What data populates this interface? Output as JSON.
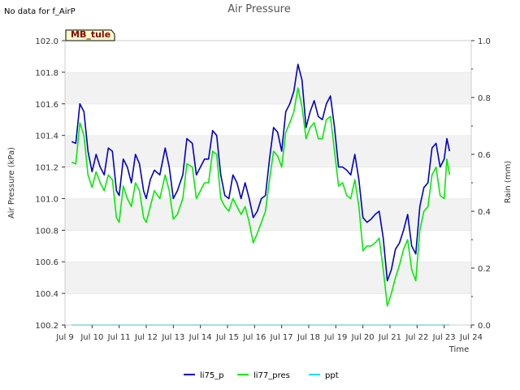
{
  "header": {
    "no_data_note": "No data for f_AirP",
    "site_label": "MB_tule"
  },
  "chart_data": {
    "type": "line",
    "title": "Air Pressure",
    "xlabel": "Time",
    "ylabel": "Air Pressure (kPa)",
    "y2label": "Rain (mm)",
    "xlim": [
      9.0,
      24.0
    ],
    "ylim": [
      100.2,
      102.0
    ],
    "y2lim": [
      0.0,
      1.0
    ],
    "x_ticks": [
      9,
      10,
      11,
      12,
      13,
      14,
      15,
      16,
      17,
      18,
      19,
      20,
      21,
      22,
      23,
      24
    ],
    "x_tick_labels": [
      "Jul 9",
      "Jul 10",
      "Jul 11",
      "Jul 12",
      "Jul 13",
      "Jul 14",
      "Jul 15",
      "Jul 16",
      "Jul 17",
      "Jul 18",
      "Jul 19",
      "Jul 20",
      "Jul 21",
      "Jul 22",
      "Jul 23",
      "Jul 24"
    ],
    "y_ticks": [
      100.2,
      100.4,
      100.6,
      100.8,
      101.0,
      101.2,
      101.4,
      101.6,
      101.8,
      102.0
    ],
    "y_tick_labels": [
      "100.2",
      "100.4",
      "100.6",
      "100.8",
      "101.0",
      "101.2",
      "101.4",
      "101.6",
      "101.8",
      "102.0"
    ],
    "y2_ticks": [
      0.0,
      0.2,
      0.4,
      0.6,
      0.8,
      1.0
    ],
    "y2_tick_labels": [
      "0.0",
      "0.2",
      "0.4",
      "0.6",
      "0.8",
      "1.0"
    ],
    "grid": "horizontal bands",
    "legend_position": "bottom-center",
    "series": [
      {
        "name": "li75_p",
        "axis": "left",
        "color": "#0000cc",
        "x": [
          9.25,
          9.4,
          9.55,
          9.7,
          9.85,
          10.0,
          10.15,
          10.3,
          10.45,
          10.6,
          10.75,
          10.9,
          11.0,
          11.15,
          11.3,
          11.45,
          11.6,
          11.75,
          11.9,
          12.0,
          12.15,
          12.3,
          12.5,
          12.7,
          12.85,
          13.0,
          13.15,
          13.35,
          13.5,
          13.7,
          13.85,
          14.0,
          14.15,
          14.3,
          14.45,
          14.6,
          14.75,
          14.9,
          15.05,
          15.2,
          15.35,
          15.5,
          15.65,
          15.8,
          15.95,
          16.1,
          16.25,
          16.4,
          16.55,
          16.7,
          16.85,
          17.0,
          17.15,
          17.3,
          17.45,
          17.6,
          17.75,
          17.9,
          18.05,
          18.2,
          18.35,
          18.5,
          18.65,
          18.8,
          18.95,
          19.1,
          19.25,
          19.4,
          19.55,
          19.7,
          19.85,
          20.0,
          20.15,
          20.3,
          20.45,
          20.6,
          20.75,
          20.9,
          21.05,
          21.2,
          21.35,
          21.5,
          21.65,
          21.8,
          21.95,
          22.1,
          22.25,
          22.4,
          22.55,
          22.7,
          22.85,
          23.0,
          23.1,
          23.2
        ],
        "values": [
          101.36,
          101.35,
          101.6,
          101.55,
          101.3,
          101.17,
          101.28,
          101.2,
          101.15,
          101.32,
          101.3,
          101.05,
          101.02,
          101.25,
          101.2,
          101.1,
          101.28,
          101.22,
          101.05,
          101.0,
          101.12,
          101.18,
          101.15,
          101.32,
          101.2,
          101.0,
          101.05,
          101.15,
          101.38,
          101.35,
          101.15,
          101.2,
          101.25,
          101.25,
          101.43,
          101.4,
          101.15,
          101.02,
          101.0,
          101.15,
          101.1,
          101.0,
          101.1,
          101.0,
          100.88,
          100.92,
          101.0,
          101.02,
          101.25,
          101.45,
          101.42,
          101.3,
          101.55,
          101.6,
          101.68,
          101.85,
          101.75,
          101.45,
          101.55,
          101.62,
          101.52,
          101.5,
          101.6,
          101.65,
          101.45,
          101.2,
          101.2,
          101.18,
          101.15,
          101.28,
          101.12,
          100.88,
          100.85,
          100.87,
          100.9,
          100.92,
          100.75,
          100.48,
          100.55,
          100.68,
          100.72,
          100.8,
          100.9,
          100.7,
          100.65,
          100.95,
          101.07,
          101.1,
          101.32,
          101.35,
          101.2,
          101.25,
          101.38,
          101.3
        ],
        "start_date_note": "July"
      },
      {
        "name": "li77_pres",
        "axis": "left",
        "color": "#00ee00",
        "x": [
          9.25,
          9.4,
          9.55,
          9.7,
          9.85,
          10.0,
          10.15,
          10.3,
          10.45,
          10.6,
          10.75,
          10.9,
          11.0,
          11.15,
          11.3,
          11.45,
          11.6,
          11.75,
          11.9,
          12.0,
          12.15,
          12.3,
          12.5,
          12.7,
          12.85,
          13.0,
          13.15,
          13.35,
          13.5,
          13.7,
          13.85,
          14.0,
          14.15,
          14.3,
          14.45,
          14.6,
          14.75,
          14.9,
          15.05,
          15.2,
          15.35,
          15.5,
          15.65,
          15.8,
          15.95,
          16.1,
          16.25,
          16.4,
          16.55,
          16.7,
          16.85,
          17.0,
          17.15,
          17.3,
          17.45,
          17.6,
          17.75,
          17.9,
          18.05,
          18.2,
          18.35,
          18.5,
          18.65,
          18.8,
          18.95,
          19.1,
          19.25,
          19.4,
          19.55,
          19.7,
          19.85,
          20.0,
          20.15,
          20.3,
          20.45,
          20.6,
          20.75,
          20.9,
          21.05,
          21.2,
          21.35,
          21.5,
          21.65,
          21.8,
          21.95,
          22.1,
          22.25,
          22.4,
          22.55,
          22.7,
          22.85,
          23.0,
          23.1,
          23.2
        ],
        "values": [
          101.23,
          101.22,
          101.48,
          101.4,
          101.15,
          101.07,
          101.17,
          101.1,
          101.05,
          101.15,
          101.12,
          100.88,
          100.85,
          101.08,
          101.0,
          100.95,
          101.1,
          101.05,
          100.88,
          100.85,
          100.95,
          101.05,
          101.0,
          101.15,
          101.05,
          100.87,
          100.9,
          101.0,
          101.22,
          101.2,
          101.0,
          101.05,
          101.1,
          101.1,
          101.3,
          101.28,
          101.0,
          100.95,
          100.92,
          101.0,
          100.95,
          100.9,
          100.95,
          100.85,
          100.72,
          100.78,
          100.85,
          100.92,
          101.12,
          101.3,
          101.27,
          101.2,
          101.42,
          101.48,
          101.55,
          101.7,
          101.58,
          101.38,
          101.45,
          101.48,
          101.38,
          101.38,
          101.5,
          101.52,
          101.3,
          101.08,
          101.1,
          101.02,
          101.0,
          101.12,
          100.95,
          100.67,
          100.7,
          100.7,
          100.72,
          100.75,
          100.55,
          100.32,
          100.4,
          100.5,
          100.58,
          100.68,
          100.74,
          100.55,
          100.48,
          100.8,
          100.92,
          100.95,
          101.15,
          101.2,
          101.02,
          101.0,
          101.25,
          101.15
        ]
      },
      {
        "name": "ppt",
        "axis": "right",
        "color": "#00e5ee",
        "x": [
          9.25,
          23.2
        ],
        "values": [
          0.0,
          0.0
        ]
      }
    ]
  }
}
